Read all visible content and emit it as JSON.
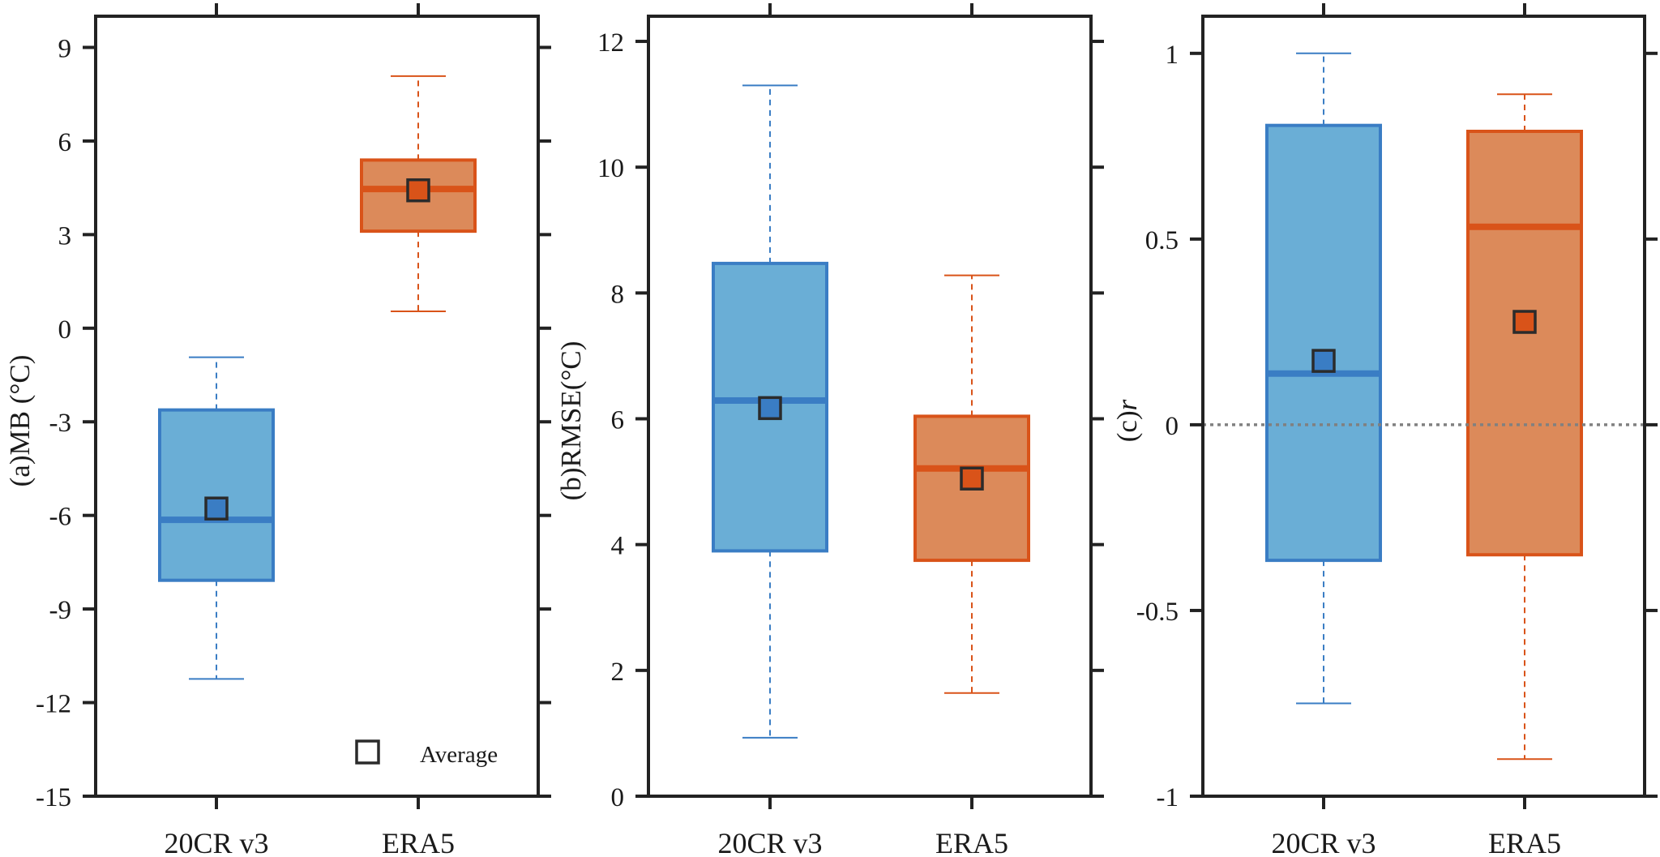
{
  "chart_data": [
    {
      "type": "box",
      "panel": "a",
      "title": "",
      "ylabel": "(a)MB (°C)",
      "ylabel_parts": [
        {
          "text": "(a)MB (°C)",
          "italic": false
        }
      ],
      "xlabel": "",
      "ylim": [
        -15,
        10
      ],
      "yticks": [
        -15,
        -12,
        -9,
        -6,
        -3,
        0,
        3,
        6,
        9
      ],
      "ytick_labels": [
        "-15",
        "-12",
        "-9",
        "-6",
        "-3",
        "0",
        "3",
        "6",
        "9"
      ],
      "categories": [
        "20CR v3",
        "ERA5"
      ],
      "boxes": [
        {
          "name": "20CR v3",
          "whisker_low": -11.24,
          "q1": -8.08,
          "median": -6.14,
          "q3": -2.62,
          "whisker_high": -0.93,
          "mean": -5.78
        },
        {
          "name": "ERA5",
          "whisker_low": 0.54,
          "q1": 3.11,
          "median": 4.46,
          "q3": 5.39,
          "whisker_high": 8.08,
          "mean": 4.42
        }
      ],
      "legend": {
        "entries": [
          {
            "symbol": "square",
            "label": "Average"
          }
        ],
        "placement": "bottom-right"
      },
      "reference_line": null
    },
    {
      "type": "box",
      "panel": "b",
      "title": "",
      "ylabel": "(b)RMSE(°C)",
      "ylabel_parts": [
        {
          "text": "(b)RMSE(°C)",
          "italic": false
        }
      ],
      "xlabel": "",
      "ylim": [
        0,
        12.4
      ],
      "yticks": [
        0,
        2,
        4,
        6,
        8,
        10,
        12
      ],
      "ytick_labels": [
        "0",
        "2",
        "4",
        "6",
        "8",
        "10",
        "12"
      ],
      "categories": [
        "20CR v3",
        "ERA5"
      ],
      "boxes": [
        {
          "name": "20CR v3",
          "whisker_low": 0.93,
          "q1": 3.9,
          "median": 6.29,
          "q3": 8.47,
          "whisker_high": 11.3,
          "mean": 6.17
        },
        {
          "name": "ERA5",
          "whisker_low": 1.64,
          "q1": 3.75,
          "median": 5.21,
          "q3": 6.04,
          "whisker_high": 8.28,
          "mean": 5.05
        }
      ],
      "legend": null,
      "reference_line": null
    },
    {
      "type": "box",
      "panel": "c",
      "title": "",
      "ylabel": "(c)r",
      "ylabel_parts": [
        {
          "text": "(c)",
          "italic": false
        },
        {
          "text": "r",
          "italic": true
        }
      ],
      "xlabel": "",
      "ylim": [
        -1,
        1.1
      ],
      "yticks": [
        -1,
        -0.5,
        0,
        0.5,
        1
      ],
      "ytick_labels": [
        "-1",
        "-0.5",
        "0",
        "0.5",
        "1"
      ],
      "categories": [
        "20CR v3",
        "ERA5"
      ],
      "boxes": [
        {
          "name": "20CR v3",
          "whisker_low": -0.75,
          "q1": -0.365,
          "median": 0.138,
          "q3": 0.806,
          "whisker_high": 1.0,
          "mean": 0.172
        },
        {
          "name": "ERA5",
          "whisker_low": -0.9,
          "q1": -0.35,
          "median": 0.533,
          "q3": 0.79,
          "whisker_high": 0.89,
          "mean": 0.277
        }
      ],
      "legend": null,
      "reference_line": {
        "y": 0,
        "style": "dotted",
        "color": "#808080"
      }
    }
  ],
  "colors": {
    "20CR v3": {
      "fill": "#6aaed6",
      "edge": "#3a7dc4",
      "whisker": "#3a7dc4"
    },
    "ERA5": {
      "fill": "#dc8a5a",
      "edge": "#d95319",
      "whisker": "#d95319"
    },
    "mean_marker_edge": "#2b2b2b",
    "axis": "#222222",
    "text": "#1a1a1a"
  },
  "legend_label": "Average"
}
